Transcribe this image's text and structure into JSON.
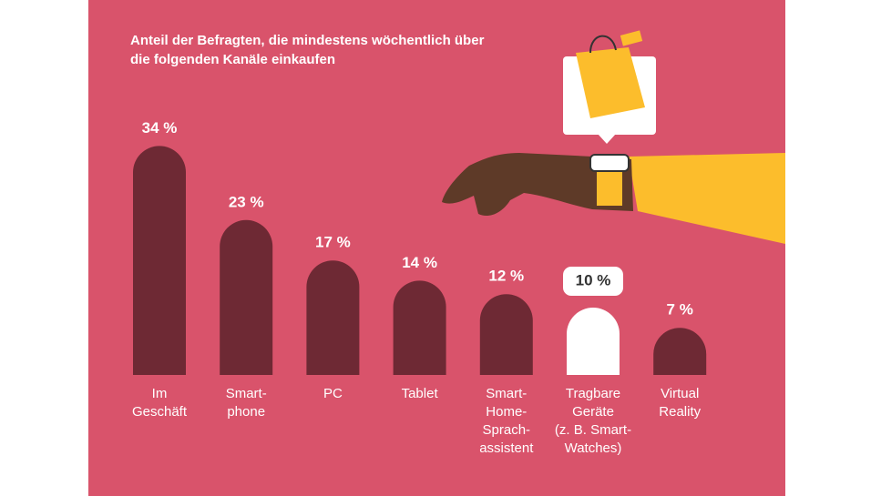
{
  "chart_data": {
    "type": "bar",
    "title": [
      "Anteil der Befragten, die mindestens wöchentlich über",
      "die folgenden Kanäle einkaufen"
    ],
    "categories": [
      [
        "Im",
        "Geschäft"
      ],
      [
        "Smart-",
        "phone"
      ],
      [
        "PC"
      ],
      [
        "Tablet"
      ],
      [
        "Smart-",
        "Home-",
        "Sprach-",
        "assistent"
      ],
      [
        "Tragbare",
        "Geräte",
        "(z. B. Smart-",
        "Watches)"
      ],
      [
        "Virtual",
        "Reality"
      ]
    ],
    "values": [
      34,
      23,
      17,
      14,
      12,
      10,
      7
    ],
    "value_labels": [
      "34 %",
      "23 %",
      "17 %",
      "14 %",
      "12 %",
      "10 %",
      "7 %"
    ],
    "colors": [
      "#6e2934",
      "#6e2934",
      "#6e2934",
      "#6e2934",
      "#6e2934",
      "#ffffff",
      "#6e2934"
    ]
  }
}
